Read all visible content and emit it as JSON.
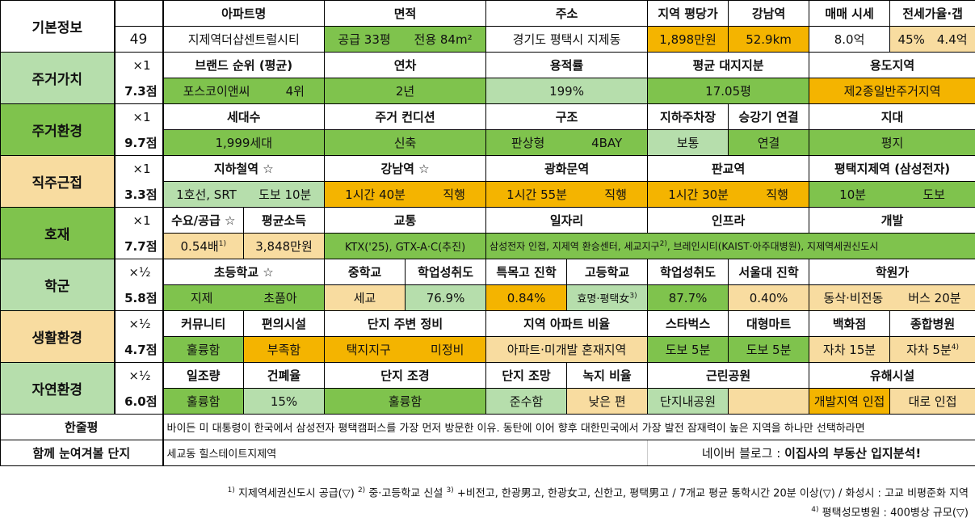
{
  "info": {
    "section": "기본정보",
    "id": "49",
    "headers": [
      "아파트명",
      "면적",
      "주소",
      "지역 평당가",
      "강남역",
      "매매 시세",
      "전세가율·갭"
    ],
    "apt_name": "지제역더샵센트럴시티",
    "area_supply": "공급 33평",
    "area_exclusive": "전용 84m²",
    "address": "경기도 평택시 지제동",
    "price_per_pyeong": "1,898만원",
    "gangnam_distance": "52.9km",
    "sale_price": "8.0억",
    "jeonse_rate": "45%",
    "gap": "4.4억"
  },
  "housing_value": {
    "section": "주거가치",
    "mult": "×1",
    "score": "7.3점",
    "headers": [
      "브랜드 순위 (평균)",
      "연차",
      "용적률",
      "평균 대지지분",
      "용도지역"
    ],
    "brand": "포스코이앤씨",
    "brand_rank": "4위",
    "age": "2년",
    "far": "199%",
    "land_share": "17.05평",
    "zoning": "제2종일반주거지역"
  },
  "housing_env": {
    "section": "주거환경",
    "mult": "×1",
    "score": "9.7점",
    "headers": [
      "세대수",
      "주거 컨디션",
      "구조",
      "지하주차장",
      "승강기 연결",
      "지대"
    ],
    "households": "1,999세대",
    "condition": "신축",
    "structure": "판상형",
    "bay": "4BAY",
    "parking": "보통",
    "elevator": "연결",
    "terrain": "평지"
  },
  "commute": {
    "section": "직주근접",
    "mult": "×1",
    "score": "3.3점",
    "headers": [
      "지하철역 ☆",
      "강남역 ☆",
      "광화문역",
      "판교역",
      "평택지제역 (삼성전자)"
    ],
    "subway_line": "1호선, SRT",
    "subway_walk": "도보 10분",
    "gangnam_time": "1시간 40분",
    "gangnam_type": "직행",
    "gwanghwamun_time": "1시간 55분",
    "gwanghwamun_type": "직행",
    "pangyo_time": "1시간 30분",
    "pangyo_type": "직행",
    "jije_time": "10분",
    "jije_type": "도보"
  },
  "development": {
    "section": "호재",
    "mult": "×1",
    "score": "7.7점",
    "headers": [
      "수요/공급 ☆",
      "평균소득",
      "교통",
      "일자리",
      "인프라",
      "개발"
    ],
    "supply_ratio": "0.54배",
    "supply_note": "1)",
    "income": "3,848만원",
    "traffic": "KTX('25), GTX-A·C(추진)",
    "jobs_infra_dev": "삼성전자 인접, 지제역 환승센터, 세교지구",
    "jobs_note": "2)",
    "jobs_infra_dev_tail": ", 브레인시티(KAIST·아주대병원), 지제역세권신도시"
  },
  "school": {
    "section": "학군",
    "mult": "×½",
    "score": "5.8점",
    "headers": [
      "초등학교 ☆",
      "중학교",
      "학업성취도",
      "특목고 진학",
      "고등학교",
      "학업성취도",
      "서울대 진학",
      "학원가"
    ],
    "elem": "지제",
    "elem_nearby": "초품아",
    "middle": "세교",
    "middle_score": "76.9%",
    "special_hs": "0.84%",
    "high": "효명·평택女",
    "high_note": "3)",
    "high_score": "87.7%",
    "snu": "0.40%",
    "academy": "동삭·비전동",
    "academy_time": "버스 20분"
  },
  "living_env": {
    "section": "생활환경",
    "mult": "×½",
    "score": "4.7점",
    "headers": [
      "커뮤니티",
      "편의시설",
      "단지 주변 정비",
      "지역 아파트 비율",
      "스타벅스",
      "대형마트",
      "백화점",
      "종합병원"
    ],
    "community": "훌륭함",
    "convenience": "부족함",
    "surroundings": "택지지구",
    "surroundings_state": "미정비",
    "apt_ratio": "아파트·미개발 혼재지역",
    "starbucks": "도보 5분",
    "mart": "도보 5분",
    "dept_store": "자차 15분",
    "hospital": "자차 5분",
    "hospital_note": "4)"
  },
  "nature_env": {
    "section": "자연환경",
    "mult": "×½",
    "score": "6.0점",
    "headers": [
      "일조량",
      "건폐율",
      "단지 조경",
      "단지 조망",
      "녹지 비율",
      "근린공원",
      "유해시설"
    ],
    "sunlight": "훌륭함",
    "bcr": "15%",
    "landscape": "훌륭함",
    "view": "준수함",
    "green_ratio": "낮은 편",
    "park": "단지내공원",
    "hazard": "개발지역 인접",
    "hazard2": "대로 인접"
  },
  "summary": {
    "label": "한줄평",
    "text": "바이든 미 대통령이 한국에서 삼성전자 평택캠퍼스를 가장 먼저 방문한 이유. 동탄에 이어 향후 대한민국에서 가장 발전 잠재력이 높은 지역을 하나만 선택하라면"
  },
  "related": {
    "label": "함께 눈여겨볼 단지",
    "text": "세교동 힐스테이트지제역",
    "blog_prefix": "네이버 블로그 : ",
    "blog_name": "이집사의 부동산 입지분석!"
  },
  "footnotes": {
    "line1_parts": [
      "1)",
      " 지제역세권신도시 공급(▽) ",
      "2)",
      " 중·고등학교 신설 ",
      "3)",
      " +비전고, 한광男고, 한광女고, 신한고, 평택男고 / 7개교 평균 통학시간 20분 이상(▽) / 화성시 : 고교 비평준화 지역"
    ],
    "line2_parts": [
      "4)",
      " 평택성모병원 : 400병상 규모(▽)"
    ]
  },
  "colors": {
    "green": "#7fc34d",
    "light_green": "#b6deac",
    "pale_yellow": "#f8dca0",
    "orange": "#f4b400"
  }
}
